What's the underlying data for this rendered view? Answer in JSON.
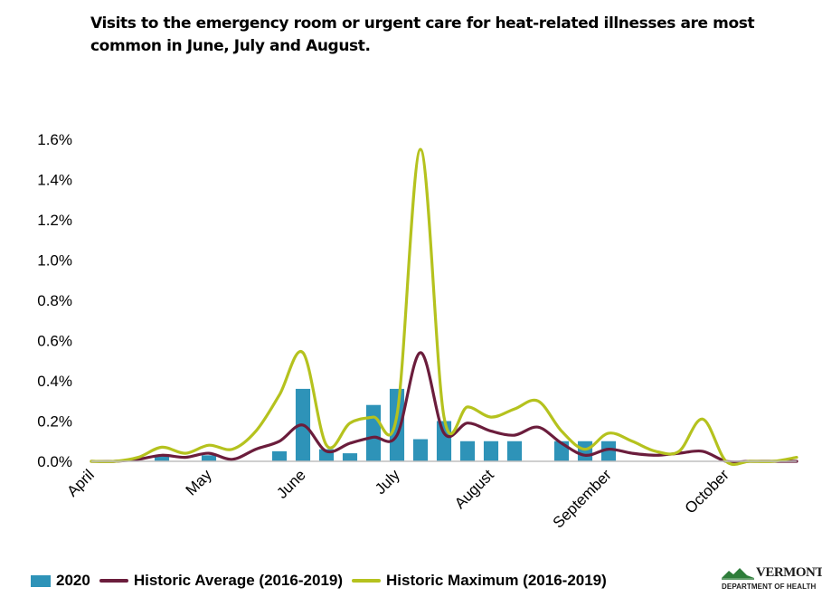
{
  "title": "Visits to the emergency room or urgent care for heat-related illnesses are most common in June, July and August.",
  "logo": {
    "wordmark": "VERMONT",
    "subtitle": "DEPARTMENT OF HEALTH"
  },
  "colors": {
    "bars": "#2e93b8",
    "average": "#6b1d3c",
    "maximum": "#b5c21e",
    "axis": "#bfbfbf",
    "logo_green": "#2e7d3a"
  },
  "legend": {
    "bars_label": "2020",
    "average_label": "Historic Average (2016-2019)",
    "maximum_label": "Historic Maximum (2016-2019)"
  },
  "chart_data": {
    "type": "bar",
    "title": "Visits to the emergency room or urgent care for heat-related illnesses are most common in June, July and August.",
    "xlabel": "",
    "ylabel": "",
    "ylim": [
      0,
      1.6
    ],
    "y_ticks": [
      "0.0%",
      "0.2%",
      "0.4%",
      "0.6%",
      "0.8%",
      "1.0%",
      "1.2%",
      "1.4%",
      "1.6%"
    ],
    "grid": false,
    "legend_position": "bottom",
    "month_labels": [
      "April",
      "May",
      "June",
      "July",
      "August",
      "September",
      "October"
    ],
    "month_weeks": [
      0,
      5,
      9,
      13,
      17,
      22,
      27
    ],
    "x_weeks": [
      0,
      1,
      2,
      3,
      4,
      5,
      6,
      7,
      8,
      9,
      10,
      11,
      12,
      13,
      14,
      15,
      16,
      17,
      18,
      19,
      20,
      21,
      22,
      23,
      24,
      25,
      26,
      27,
      28,
      29,
      30
    ],
    "series": [
      {
        "name": "2020",
        "type": "bar",
        "values": [
          0,
          0,
          0,
          0.03,
          0,
          0.03,
          0,
          0,
          0.05,
          0.36,
          0.06,
          0.04,
          0.28,
          0.36,
          0.11,
          0.2,
          0.1,
          0.1,
          0.1,
          0,
          0.1,
          0.1,
          0.1,
          0,
          0,
          0,
          0,
          0,
          0,
          0,
          0
        ]
      },
      {
        "name": "Historic Average (2016-2019)",
        "type": "line",
        "values": [
          0,
          0,
          0.01,
          0.03,
          0.02,
          0.04,
          0.01,
          0.06,
          0.1,
          0.18,
          0.05,
          0.09,
          0.12,
          0.13,
          0.54,
          0.14,
          0.19,
          0.15,
          0.13,
          0.17,
          0.09,
          0.03,
          0.06,
          0.04,
          0.03,
          0.04,
          0.05,
          0,
          0,
          0,
          0
        ]
      },
      {
        "name": "Historic Maximum (2016-2019)",
        "type": "line",
        "values": [
          0,
          0,
          0.02,
          0.07,
          0.04,
          0.08,
          0.06,
          0.15,
          0.33,
          0.54,
          0.08,
          0.19,
          0.22,
          0.23,
          1.55,
          0.22,
          0.27,
          0.22,
          0.26,
          0.3,
          0.15,
          0.06,
          0.14,
          0.1,
          0.05,
          0.05,
          0.21,
          0,
          0,
          0,
          0.02
        ]
      }
    ]
  }
}
